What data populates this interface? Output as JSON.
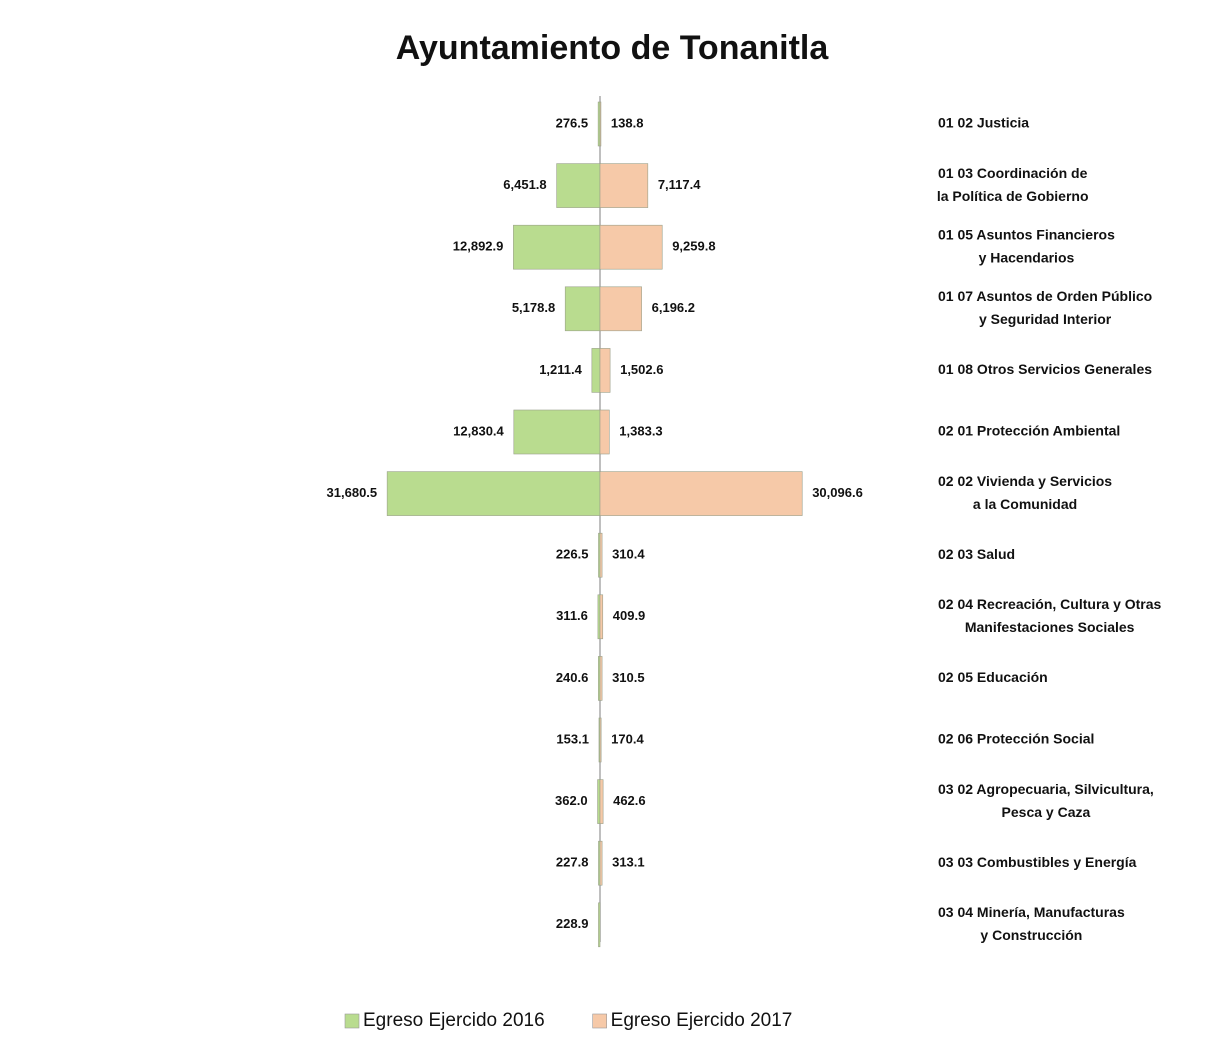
{
  "chart_data": {
    "type": "butterfly",
    "title": "Ayuntamiento de Tonanitla",
    "categories": [
      [
        "01 02 Justicia"
      ],
      [
        "01 03 Coordinación de",
        "la Política de Gobierno"
      ],
      [
        "01 05 Asuntos Financieros",
        "y Hacendarios"
      ],
      [
        "01 07 Asuntos de Orden Público",
        "y Seguridad Interior"
      ],
      [
        "01 08 Otros Servicios Generales"
      ],
      [
        "02 01 Protección Ambiental"
      ],
      [
        "02 02 Vivienda y Servicios",
        "a la Comunidad"
      ],
      [
        "02 03 Salud"
      ],
      [
        "02 04 Recreación, Cultura y Otras",
        "Manifestaciones Sociales"
      ],
      [
        "02 05 Educación"
      ],
      [
        "02 06 Protección Social"
      ],
      [
        "03 02 Agropecuaria, Silvicultura,",
        "Pesca y Caza"
      ],
      [
        "03 03 Combustibles y Energía"
      ],
      [
        "03 04 Minería, Manufacturas",
        "y Construcción"
      ]
    ],
    "series": [
      {
        "name": "Egreso Ejercido 2016",
        "color": "#b9dc8f",
        "side": "left",
        "values": [
          276.5,
          6451.8,
          12892.9,
          5178.8,
          1211.4,
          12830.4,
          31680.5,
          226.5,
          311.6,
          240.6,
          153.1,
          362.0,
          227.8,
          228.9
        ],
        "value_labels": [
          "276.5",
          "6,451.8",
          "12,892.9",
          "5,178.8",
          "1,211.4",
          "12,830.4",
          "31,680.5",
          "226.5",
          "311.6",
          "240.6",
          "153.1",
          "362.0",
          "227.8",
          "228.9"
        ]
      },
      {
        "name": "Egreso Ejercido 2017",
        "color": "#f6c9a8",
        "side": "right",
        "values": [
          138.8,
          7117.4,
          9259.8,
          6196.2,
          1502.6,
          1383.3,
          30096.6,
          310.4,
          409.9,
          310.5,
          170.4,
          462.6,
          313.1,
          null
        ],
        "value_labels": [
          "138.8",
          "7,117.4",
          "9,259.8",
          "6,196.2",
          "1,502.6",
          "1,383.3",
          "30,096.6",
          "310.4",
          "409.9",
          "310.5",
          "170.4",
          "462.6",
          "313.1",
          null
        ]
      }
    ],
    "xlim": [
      0,
      32000
    ]
  }
}
